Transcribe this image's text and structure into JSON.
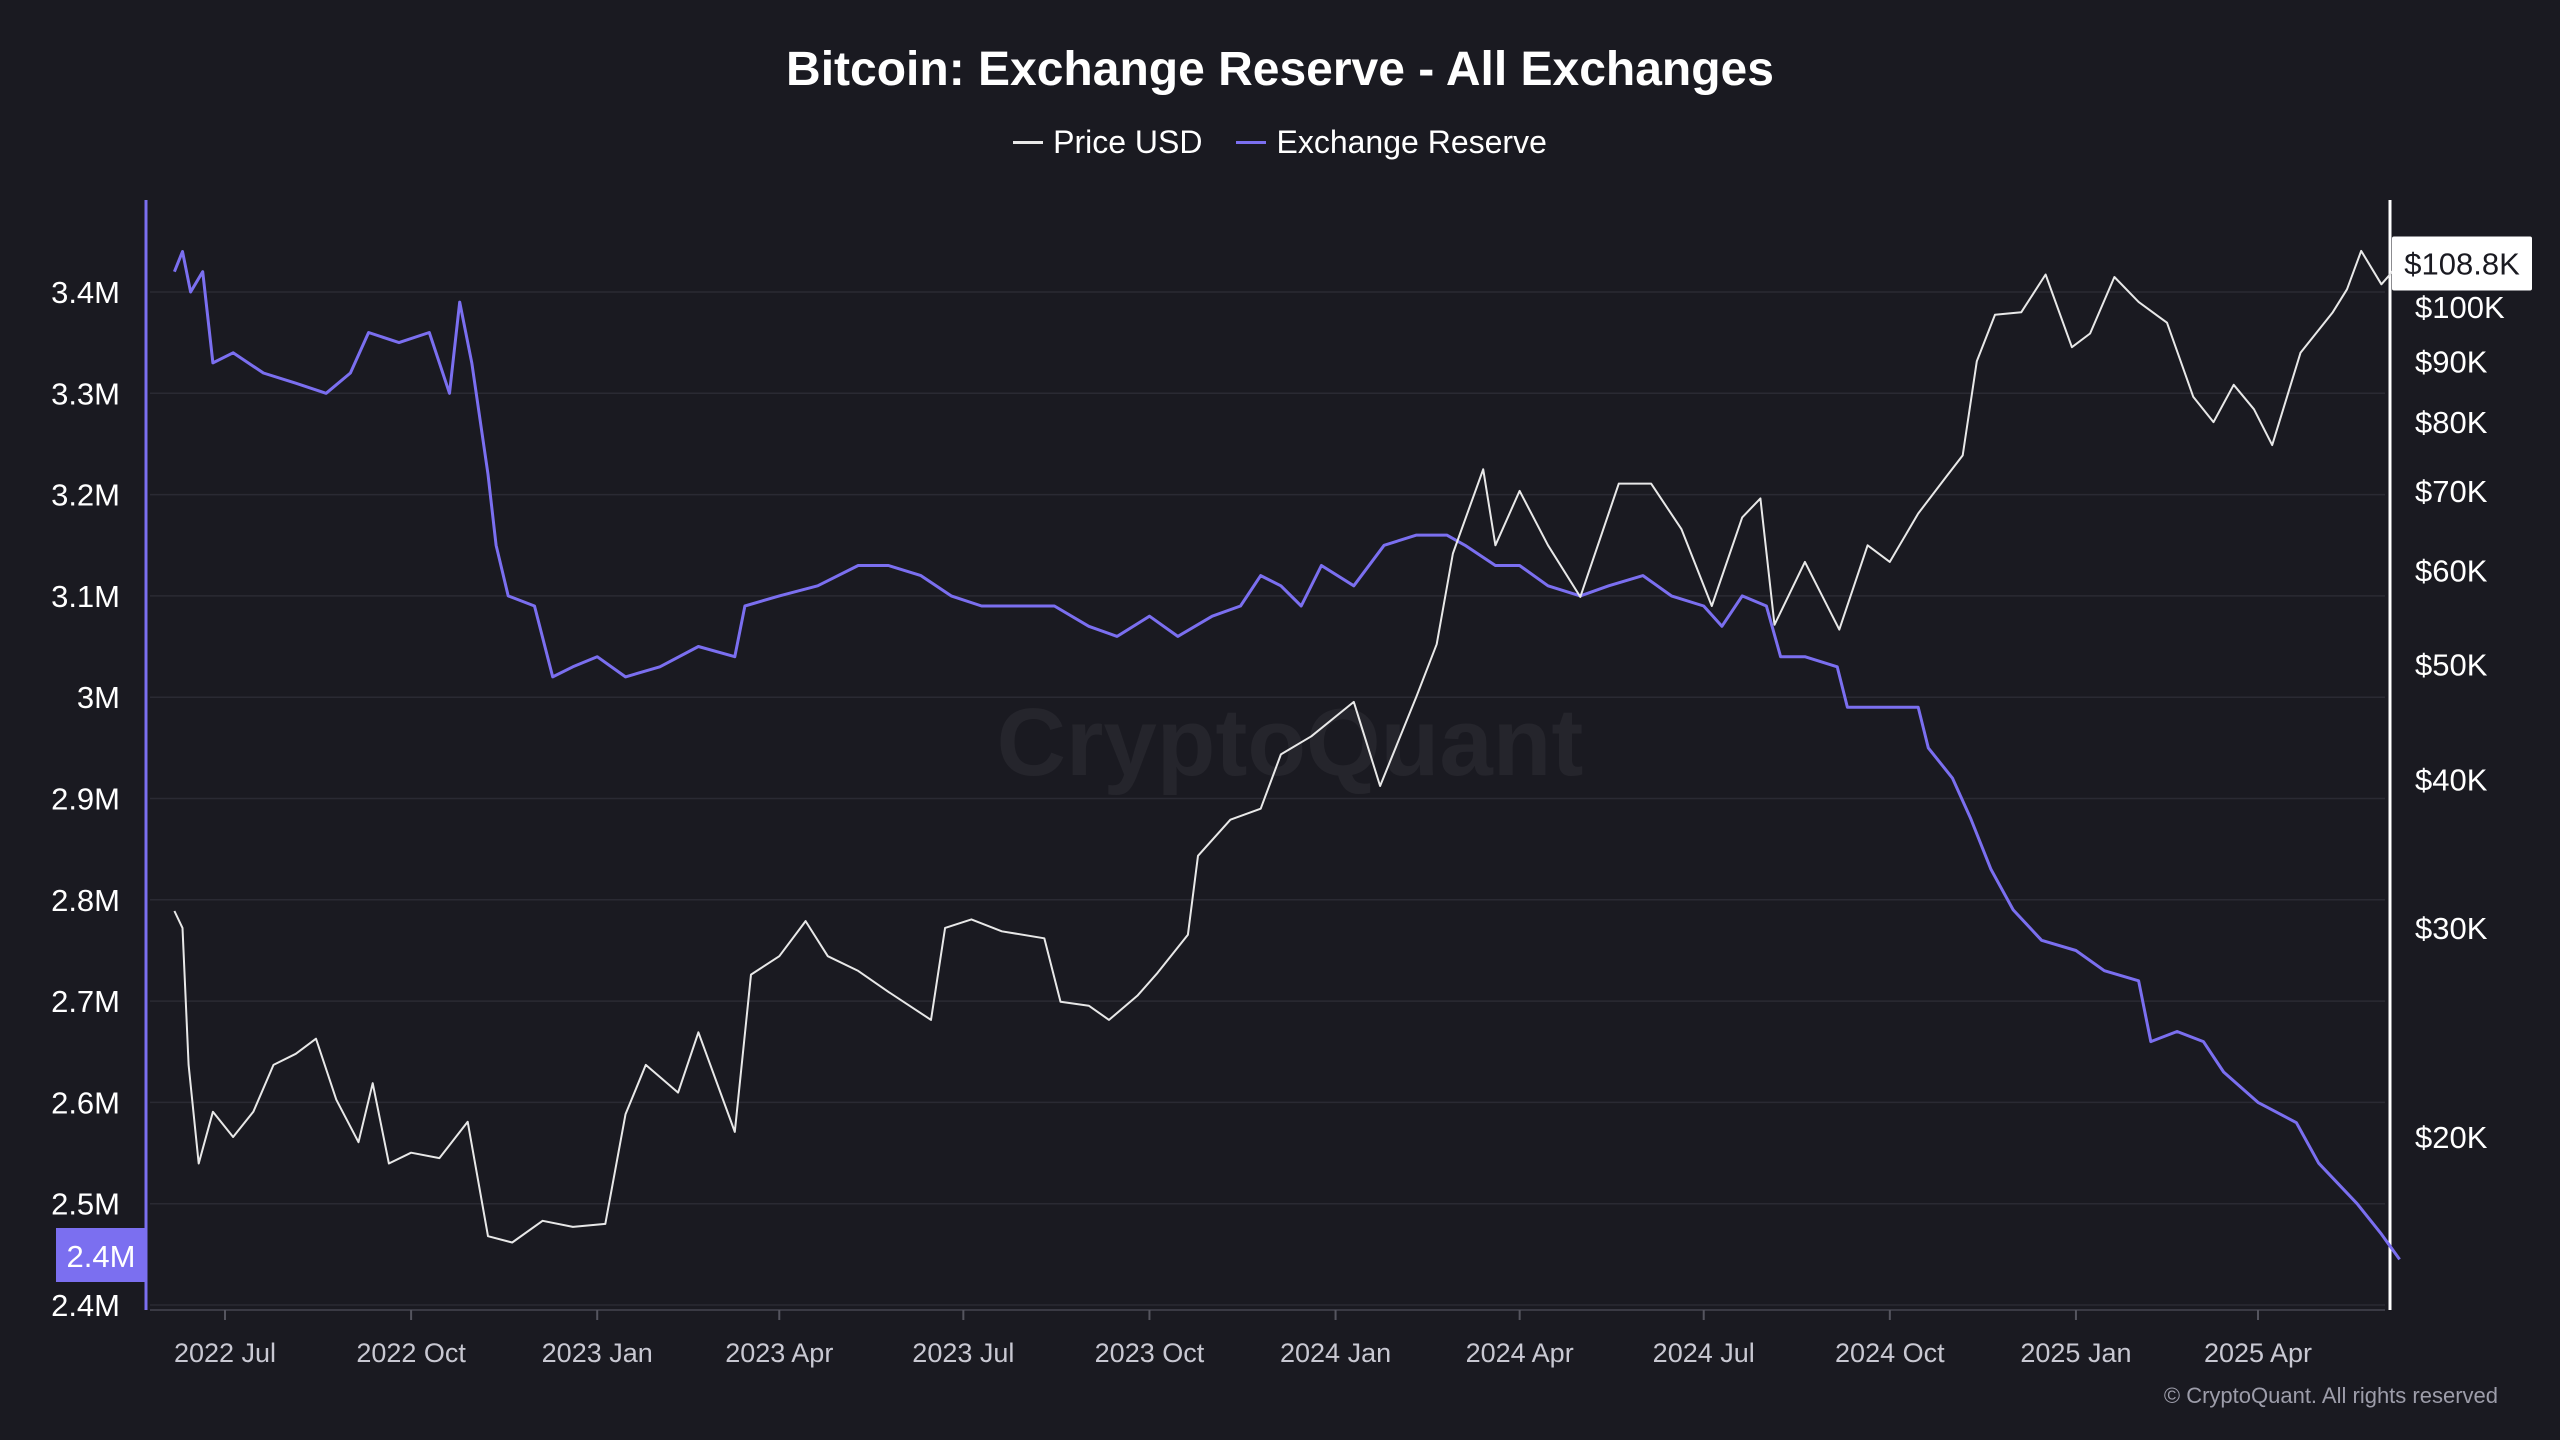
{
  "title": "Bitcoin: Exchange Reserve - All Exchanges",
  "legend": {
    "price_label": "Price USD",
    "reserve_label": "Exchange Reserve"
  },
  "watermark": "CryptoQuant",
  "copyright": "© CryptoQuant. All rights reserved",
  "colors": {
    "background": "#1a1a21",
    "price": "#e8e8e8",
    "reserve": "#7b6ff0",
    "grid": "#2a2a33"
  },
  "chart_data": {
    "type": "line",
    "title": "Bitcoin: Exchange Reserve - All Exchanges",
    "x_range": [
      "2022-06-01",
      "2025-06-15"
    ],
    "x_ticks": [
      {
        "date": "2022-07-01",
        "label": "2022 Jul"
      },
      {
        "date": "2022-10-01",
        "label": "2022 Oct"
      },
      {
        "date": "2023-01-01",
        "label": "2023 Jan"
      },
      {
        "date": "2023-04-01",
        "label": "2023 Apr"
      },
      {
        "date": "2023-07-01",
        "label": "2023 Jul"
      },
      {
        "date": "2023-10-01",
        "label": "2023 Oct"
      },
      {
        "date": "2024-01-01",
        "label": "2024 Jan"
      },
      {
        "date": "2024-04-01",
        "label": "2024 Apr"
      },
      {
        "date": "2024-07-01",
        "label": "2024 Jul"
      },
      {
        "date": "2024-10-01",
        "label": "2024 Oct"
      },
      {
        "date": "2025-01-01",
        "label": "2025 Jan"
      },
      {
        "date": "2025-04-01",
        "label": "2025 Apr"
      }
    ],
    "left_axis": {
      "ylim": [
        2400000,
        3500000
      ],
      "ticks": [
        {
          "value": 3400000,
          "label": "3.4M"
        },
        {
          "value": 3300000,
          "label": "3.3M"
        },
        {
          "value": 3200000,
          "label": "3.2M"
        },
        {
          "value": 3100000,
          "label": "3.1M"
        },
        {
          "value": 3000000,
          "label": "3M"
        },
        {
          "value": 2900000,
          "label": "2.9M"
        },
        {
          "value": 2800000,
          "label": "2.8M"
        },
        {
          "value": 2700000,
          "label": "2.7M"
        },
        {
          "value": 2600000,
          "label": "2.6M"
        },
        {
          "value": 2500000,
          "label": "2.5M"
        },
        {
          "value": 2400000,
          "label": "2.4M"
        }
      ],
      "current_value_label": "2.4M"
    },
    "right_axis": {
      "scale": "log",
      "ylim": [
        15000,
        135000
      ],
      "ticks": [
        {
          "value": 100000,
          "label": "$100K"
        },
        {
          "value": 90000,
          "label": "$90K"
        },
        {
          "value": 80000,
          "label": "$80K"
        },
        {
          "value": 70000,
          "label": "$70K"
        },
        {
          "value": 60000,
          "label": "$60K"
        },
        {
          "value": 50000,
          "label": "$50K"
        },
        {
          "value": 40000,
          "label": "$40K"
        },
        {
          "value": 30000,
          "label": "$30K"
        },
        {
          "value": 20000,
          "label": "$20K"
        }
      ],
      "current_value_label": "$108.8K"
    },
    "series": [
      {
        "name": "Exchange Reserve",
        "axis": "left",
        "color": "#7b6ff0",
        "points": [
          [
            "2022-06-06",
            3420000
          ],
          [
            "2022-06-10",
            3440000
          ],
          [
            "2022-06-14",
            3400000
          ],
          [
            "2022-06-20",
            3420000
          ],
          [
            "2022-06-25",
            3330000
          ],
          [
            "2022-07-05",
            3340000
          ],
          [
            "2022-07-20",
            3320000
          ],
          [
            "2022-08-05",
            3310000
          ],
          [
            "2022-08-20",
            3300000
          ],
          [
            "2022-09-01",
            3320000
          ],
          [
            "2022-09-10",
            3360000
          ],
          [
            "2022-09-25",
            3350000
          ],
          [
            "2022-10-10",
            3360000
          ],
          [
            "2022-10-20",
            3300000
          ],
          [
            "2022-10-25",
            3390000
          ],
          [
            "2022-10-31",
            3330000
          ],
          [
            "2022-11-08",
            3220000
          ],
          [
            "2022-11-12",
            3150000
          ],
          [
            "2022-11-18",
            3100000
          ],
          [
            "2022-12-01",
            3090000
          ],
          [
            "2022-12-10",
            3020000
          ],
          [
            "2022-12-20",
            3030000
          ],
          [
            "2023-01-01",
            3040000
          ],
          [
            "2023-01-15",
            3020000
          ],
          [
            "2023-02-01",
            3030000
          ],
          [
            "2023-02-20",
            3050000
          ],
          [
            "2023-03-10",
            3040000
          ],
          [
            "2023-03-15",
            3090000
          ],
          [
            "2023-04-01",
            3100000
          ],
          [
            "2023-04-20",
            3110000
          ],
          [
            "2023-05-10",
            3130000
          ],
          [
            "2023-05-25",
            3130000
          ],
          [
            "2023-06-10",
            3120000
          ],
          [
            "2023-06-25",
            3100000
          ],
          [
            "2023-07-10",
            3090000
          ],
          [
            "2023-07-25",
            3090000
          ],
          [
            "2023-08-15",
            3090000
          ],
          [
            "2023-09-01",
            3070000
          ],
          [
            "2023-09-15",
            3060000
          ],
          [
            "2023-10-01",
            3080000
          ],
          [
            "2023-10-15",
            3060000
          ],
          [
            "2023-11-01",
            3080000
          ],
          [
            "2023-11-15",
            3090000
          ],
          [
            "2023-11-25",
            3120000
          ],
          [
            "2023-12-05",
            3110000
          ],
          [
            "2023-12-15",
            3090000
          ],
          [
            "2023-12-25",
            3130000
          ],
          [
            "2024-01-10",
            3110000
          ],
          [
            "2024-01-25",
            3150000
          ],
          [
            "2024-02-10",
            3160000
          ],
          [
            "2024-02-25",
            3160000
          ],
          [
            "2024-03-05",
            3150000
          ],
          [
            "2024-03-20",
            3130000
          ],
          [
            "2024-04-01",
            3130000
          ],
          [
            "2024-04-15",
            3110000
          ],
          [
            "2024-05-01",
            3100000
          ],
          [
            "2024-05-15",
            3110000
          ],
          [
            "2024-06-01",
            3120000
          ],
          [
            "2024-06-15",
            3100000
          ],
          [
            "2024-07-01",
            3090000
          ],
          [
            "2024-07-10",
            3070000
          ],
          [
            "2024-07-20",
            3100000
          ],
          [
            "2024-08-01",
            3090000
          ],
          [
            "2024-08-08",
            3040000
          ],
          [
            "2024-08-20",
            3040000
          ],
          [
            "2024-09-05",
            3030000
          ],
          [
            "2024-09-10",
            2990000
          ],
          [
            "2024-09-25",
            2990000
          ],
          [
            "2024-10-05",
            2990000
          ],
          [
            "2024-10-15",
            2990000
          ],
          [
            "2024-10-20",
            2950000
          ],
          [
            "2024-11-01",
            2920000
          ],
          [
            "2024-11-10",
            2880000
          ],
          [
            "2024-11-20",
            2830000
          ],
          [
            "2024-12-01",
            2790000
          ],
          [
            "2024-12-15",
            2760000
          ],
          [
            "2025-01-01",
            2750000
          ],
          [
            "2025-01-15",
            2730000
          ],
          [
            "2025-02-01",
            2720000
          ],
          [
            "2025-02-07",
            2660000
          ],
          [
            "2025-02-20",
            2670000
          ],
          [
            "2025-03-05",
            2660000
          ],
          [
            "2025-03-15",
            2630000
          ],
          [
            "2025-04-01",
            2600000
          ],
          [
            "2025-04-20",
            2580000
          ],
          [
            "2025-05-01",
            2540000
          ],
          [
            "2025-05-20",
            2500000
          ],
          [
            "2025-06-01",
            2470000
          ],
          [
            "2025-06-10",
            2445000
          ]
        ]
      },
      {
        "name": "Price USD",
        "axis": "right",
        "color": "#e8e8e8",
        "points": [
          [
            "2022-06-06",
            31000
          ],
          [
            "2022-06-10",
            30000
          ],
          [
            "2022-06-13",
            23000
          ],
          [
            "2022-06-18",
            19000
          ],
          [
            "2022-06-25",
            21000
          ],
          [
            "2022-07-05",
            20000
          ],
          [
            "2022-07-15",
            21000
          ],
          [
            "2022-07-25",
            23000
          ],
          [
            "2022-08-05",
            23500
          ],
          [
            "2022-08-15",
            24200
          ],
          [
            "2022-08-25",
            21500
          ],
          [
            "2022-09-05",
            19800
          ],
          [
            "2022-09-12",
            22200
          ],
          [
            "2022-09-20",
            19000
          ],
          [
            "2022-10-01",
            19400
          ],
          [
            "2022-10-15",
            19200
          ],
          [
            "2022-10-29",
            20600
          ],
          [
            "2022-11-08",
            16500
          ],
          [
            "2022-11-20",
            16300
          ],
          [
            "2022-12-05",
            17000
          ],
          [
            "2022-12-20",
            16800
          ],
          [
            "2023-01-05",
            16900
          ],
          [
            "2023-01-15",
            20900
          ],
          [
            "2023-01-25",
            23000
          ],
          [
            "2023-02-10",
            21800
          ],
          [
            "2023-02-20",
            24500
          ],
          [
            "2023-03-10",
            20200
          ],
          [
            "2023-03-18",
            27400
          ],
          [
            "2023-04-01",
            28400
          ],
          [
            "2023-04-14",
            30400
          ],
          [
            "2023-04-25",
            28400
          ],
          [
            "2023-05-10",
            27600
          ],
          [
            "2023-05-25",
            26500
          ],
          [
            "2023-06-15",
            25100
          ],
          [
            "2023-06-22",
            30000
          ],
          [
            "2023-07-05",
            30500
          ],
          [
            "2023-07-20",
            29800
          ],
          [
            "2023-08-10",
            29400
          ],
          [
            "2023-08-18",
            26000
          ],
          [
            "2023-09-01",
            25800
          ],
          [
            "2023-09-11",
            25100
          ],
          [
            "2023-09-25",
            26300
          ],
          [
            "2023-10-05",
            27500
          ],
          [
            "2023-10-20",
            29600
          ],
          [
            "2023-10-25",
            34500
          ],
          [
            "2023-11-10",
            37000
          ],
          [
            "2023-11-25",
            37800
          ],
          [
            "2023-12-05",
            42000
          ],
          [
            "2023-12-20",
            43500
          ],
          [
            "2024-01-10",
            46500
          ],
          [
            "2024-01-23",
            39500
          ],
          [
            "2024-02-10",
            47000
          ],
          [
            "2024-02-20",
            52000
          ],
          [
            "2024-02-28",
            62000
          ],
          [
            "2024-03-14",
            73000
          ],
          [
            "2024-03-20",
            63000
          ],
          [
            "2024-04-01",
            70000
          ],
          [
            "2024-04-15",
            63000
          ],
          [
            "2024-05-01",
            57000
          ],
          [
            "2024-05-20",
            71000
          ],
          [
            "2024-06-05",
            71000
          ],
          [
            "2024-06-20",
            65000
          ],
          [
            "2024-07-05",
            56000
          ],
          [
            "2024-07-20",
            66500
          ],
          [
            "2024-07-29",
            69000
          ],
          [
            "2024-08-05",
            54000
          ],
          [
            "2024-08-20",
            61000
          ],
          [
            "2024-09-06",
            53500
          ],
          [
            "2024-09-20",
            63000
          ],
          [
            "2024-10-01",
            61000
          ],
          [
            "2024-10-15",
            67000
          ],
          [
            "2024-10-29",
            72000
          ],
          [
            "2024-11-06",
            75000
          ],
          [
            "2024-11-13",
            90000
          ],
          [
            "2024-11-22",
            98500
          ],
          [
            "2024-12-05",
            99000
          ],
          [
            "2024-12-17",
            106500
          ],
          [
            "2024-12-30",
            92500
          ],
          [
            "2025-01-08",
            95000
          ],
          [
            "2025-01-20",
            106000
          ],
          [
            "2025-02-01",
            101000
          ],
          [
            "2025-02-15",
            97000
          ],
          [
            "2025-02-28",
            84000
          ],
          [
            "2025-03-10",
            80000
          ],
          [
            "2025-03-20",
            86000
          ],
          [
            "2025-03-30",
            82000
          ],
          [
            "2025-04-08",
            76500
          ],
          [
            "2025-04-22",
            91500
          ],
          [
            "2025-05-08",
            99000
          ],
          [
            "2025-05-15",
            103500
          ],
          [
            "2025-05-22",
            111500
          ],
          [
            "2025-06-01",
            104500
          ],
          [
            "2025-06-10",
            108800
          ]
        ]
      }
    ]
  }
}
